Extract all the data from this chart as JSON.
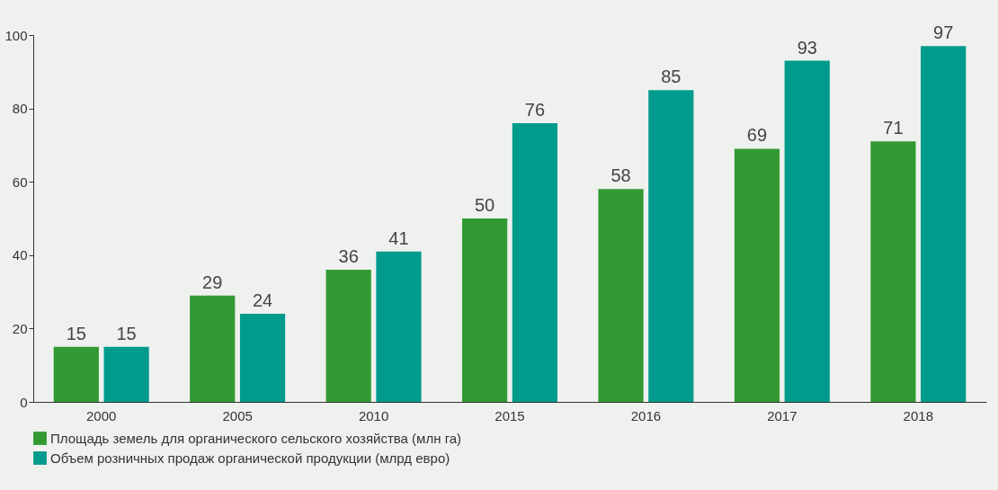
{
  "chart_data": {
    "type": "bar",
    "categories": [
      "2000",
      "2005",
      "2010",
      "2015",
      "2016",
      "2017",
      "2018"
    ],
    "series": [
      {
        "name": "Площадь земель для органического сельского хозяйства (млн га)",
        "color": "#339933",
        "values": [
          15,
          29,
          36,
          50,
          58,
          69,
          71
        ]
      },
      {
        "name": "Объем розничных продаж органической продукции (млрд евро)",
        "color": "#009b8c",
        "values": [
          15,
          24,
          41,
          76,
          85,
          93,
          97
        ]
      }
    ],
    "ylim": [
      0,
      100
    ],
    "yticks": [
      0,
      20,
      40,
      60,
      80,
      100
    ],
    "grid": false,
    "legend": "bottom",
    "data_labels": true
  }
}
